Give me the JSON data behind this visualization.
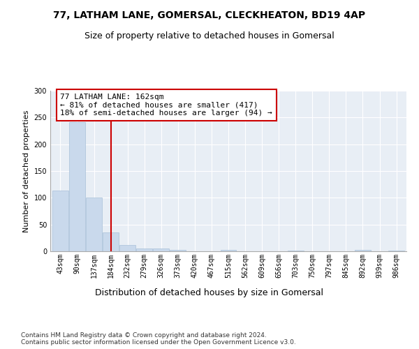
{
  "title1": "77, LATHAM LANE, GOMERSAL, CLECKHEATON, BD19 4AP",
  "title2": "Size of property relative to detached houses in Gomersal",
  "xlabel": "Distribution of detached houses by size in Gomersal",
  "ylabel": "Number of detached properties",
  "bar_labels": [
    "43sqm",
    "90sqm",
    "137sqm",
    "184sqm",
    "232sqm",
    "279sqm",
    "326sqm",
    "373sqm",
    "420sqm",
    "467sqm",
    "515sqm",
    "562sqm",
    "609sqm",
    "656sqm",
    "703sqm",
    "750sqm",
    "797sqm",
    "845sqm",
    "892sqm",
    "939sqm",
    "986sqm"
  ],
  "bar_values": [
    113,
    241,
    100,
    35,
    12,
    5,
    5,
    2,
    0,
    0,
    2,
    0,
    0,
    0,
    1,
    0,
    0,
    0,
    2,
    0,
    1
  ],
  "bar_color": "#c9d9ec",
  "bar_edge_color": "#a8c0d8",
  "vline_x": 3.0,
  "vline_color": "#cc0000",
  "annotation_text": "77 LATHAM LANE: 162sqm\n← 81% of detached houses are smaller (417)\n18% of semi-detached houses are larger (94) →",
  "annotation_box_color": "#ffffff",
  "annotation_box_edge": "#cc0000",
  "ylim": [
    0,
    300
  ],
  "yticks": [
    0,
    50,
    100,
    150,
    200,
    250,
    300
  ],
  "background_color": "#e8eef5",
  "footer_text": "Contains HM Land Registry data © Crown copyright and database right 2024.\nContains public sector information licensed under the Open Government Licence v3.0.",
  "title1_fontsize": 10,
  "title2_fontsize": 9,
  "xlabel_fontsize": 9,
  "ylabel_fontsize": 8,
  "annotation_fontsize": 8,
  "footer_fontsize": 6.5,
  "tick_fontsize": 7
}
